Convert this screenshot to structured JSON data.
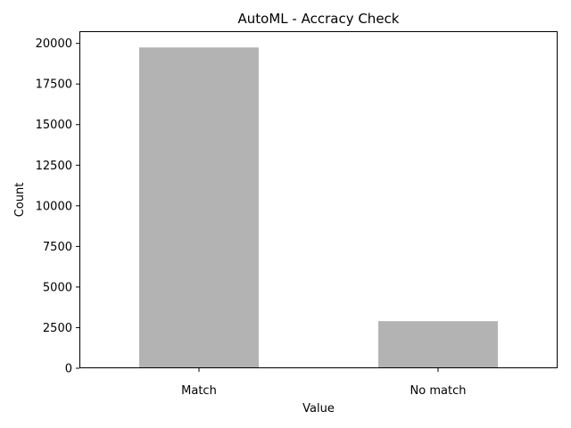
{
  "chart_data": {
    "type": "bar",
    "title": "AutoML - Accracy Check",
    "xlabel": "Value",
    "ylabel": "Count",
    "categories": [
      "Match",
      "No match"
    ],
    "values": [
      19750,
      2900
    ],
    "ylim": [
      0,
      20750
    ],
    "yticks": [
      0,
      2500,
      5000,
      7500,
      10000,
      12500,
      15000,
      17500,
      20000
    ],
    "grid": false,
    "legend": "none",
    "bar_color": "#b3b3b3"
  }
}
